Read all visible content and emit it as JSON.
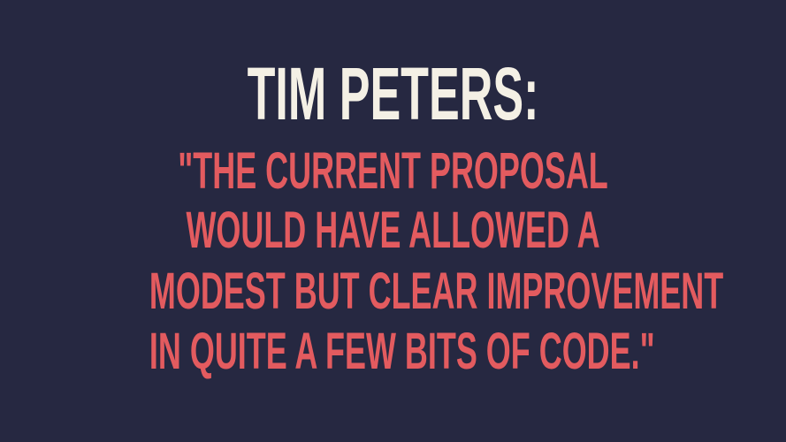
{
  "slide": {
    "title": "TIM PETERS:",
    "quote_lines": [
      "\"THE CURRENT PROPOSAL",
      "WOULD HAVE ALLOWED A",
      "MODEST BUT CLEAR IMPROVEMENT",
      "IN QUITE A FEW BITS OF CODE.\""
    ]
  },
  "colors": {
    "background": "#262841",
    "title": "#f4f0e5",
    "quote": "#e35b5f"
  }
}
